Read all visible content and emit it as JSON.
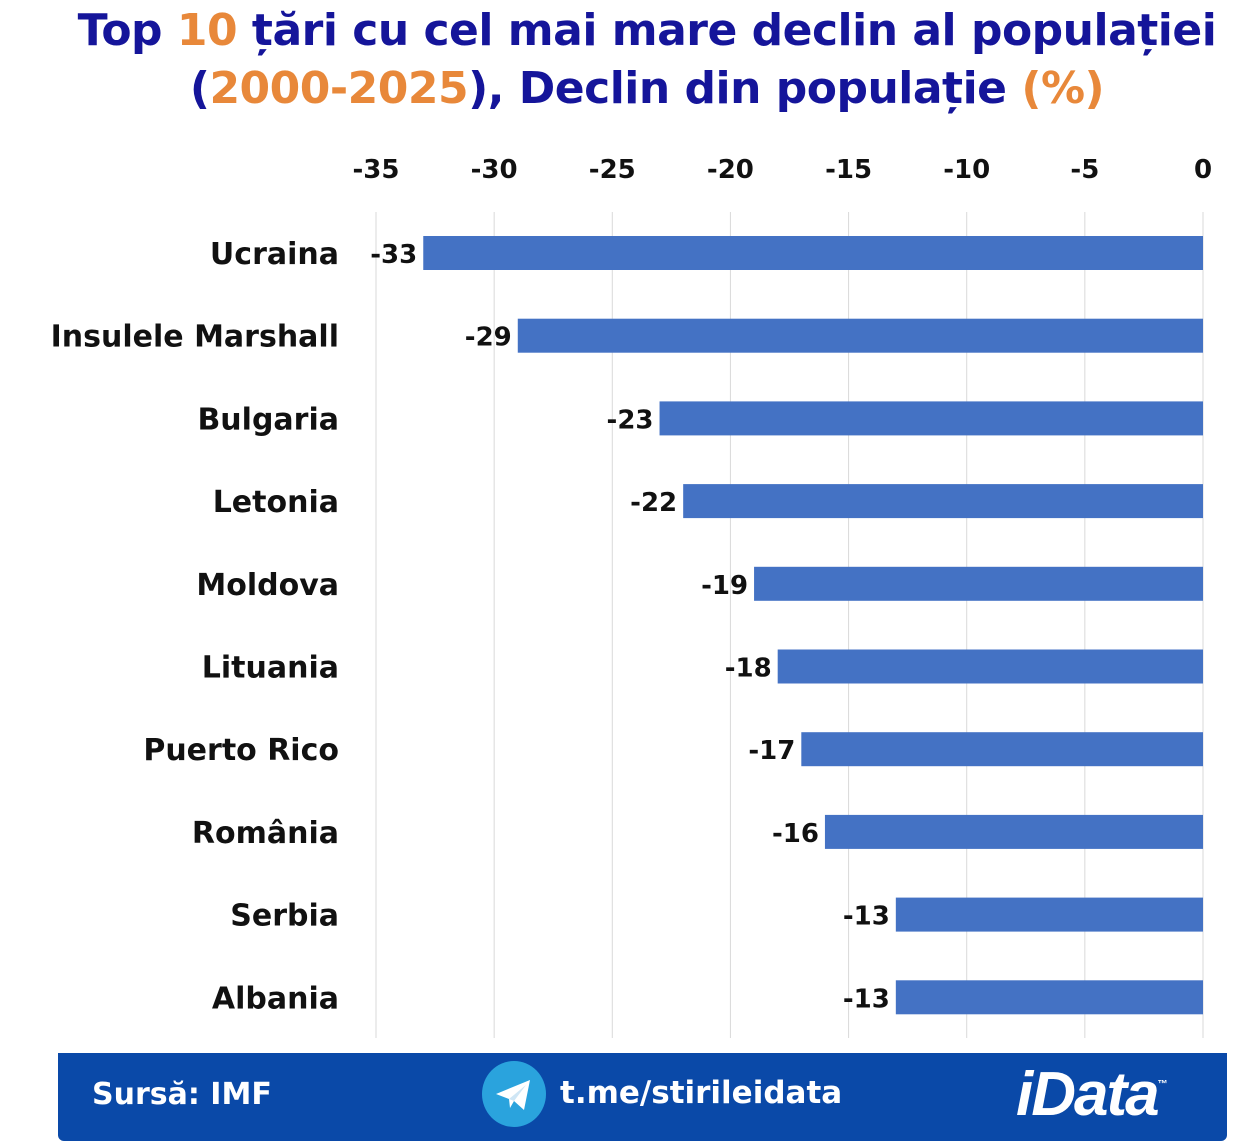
{
  "chart_data": {
    "type": "bar",
    "orientation": "horizontal",
    "title_parts": [
      {
        "text": "Top ",
        "highlight": false
      },
      {
        "text": "10",
        "highlight": true
      },
      {
        "text": " țări cu cel mai mare declin al populației",
        "highlight": false
      },
      {
        "text": "(",
        "highlight": false,
        "newline": true
      },
      {
        "text": "2000-2025",
        "highlight": true
      },
      {
        "text": "), Declin din  populație ",
        "highlight": false
      },
      {
        "text": "(%)",
        "highlight": true
      }
    ],
    "categories": [
      "Ucraina",
      "Insulele Marshall",
      "Bulgaria",
      "Letonia",
      "Moldova",
      "Lituania",
      "Puerto Rico",
      "România",
      "Serbia",
      "Albania"
    ],
    "values": [
      -33,
      -29,
      -23,
      -22,
      -19,
      -18,
      -17,
      -16,
      -13,
      -13
    ],
    "data_labels": [
      "-33",
      "-29",
      "-23",
      "-22",
      "-19",
      "-18",
      "-17",
      "-16",
      "-13",
      "-13"
    ],
    "xlim": [
      -35,
      0
    ],
    "xticks": [
      -35,
      -30,
      -25,
      -20,
      -15,
      -10,
      -5,
      0
    ],
    "xtick_labels": [
      "-35",
      "-30",
      "-25",
      "-20",
      "-15",
      "-10",
      "-5",
      "0"
    ],
    "axis_position": "top",
    "grid": true,
    "colors": {
      "bar": "#4472c4",
      "title": "#15159a",
      "highlight": "#e8883a",
      "grid": "#d9d9d9"
    }
  },
  "footer": {
    "source": "Sursă: IMF",
    "telegram_icon": "telegram-icon",
    "telegram_link": "t.me/stirileidata",
    "logo": "iData",
    "logo_mark": "™",
    "background": "#0a49a8"
  }
}
